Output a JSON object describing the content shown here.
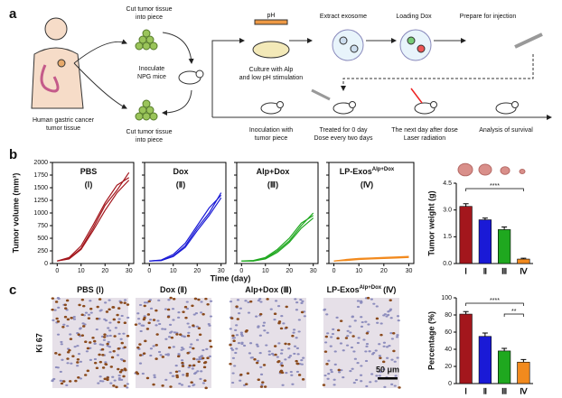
{
  "panel_a": {
    "label": "a",
    "source": [
      "Human gastric cancer",
      "tumor tissue"
    ],
    "cut_top": [
      "Cut tumor tissue",
      "into piece"
    ],
    "inoculate": [
      "Inoculate",
      "NPG mice"
    ],
    "cut_bottom": [
      "Cut tumor tissue",
      "into piece"
    ],
    "ph": "pH",
    "culture": [
      "Culture with Alp",
      "and low pH stimulation"
    ],
    "extract": [
      "Extract exosome"
    ],
    "loading": [
      "Loading Dox"
    ],
    "prepare": [
      "Prepare for injection"
    ],
    "timeline": [
      [
        "Inoculation with",
        "tumor piece"
      ],
      [
        "Treated for 0 day",
        "Dose every two days"
      ],
      [
        "The next day after dose",
        "Laser radiation"
      ],
      [
        "Analysis of survival"
      ]
    ]
  },
  "panel_b": {
    "label": "b",
    "growth": {
      "y_label": "Tumor volume (mm³)",
      "x_label": "Time (day)",
      "x": [
        0,
        5,
        10,
        15,
        20,
        25,
        30
      ],
      "xlim": [
        -2,
        32
      ],
      "xticks": [
        0,
        10,
        20,
        30
      ],
      "ylim": [
        0,
        2000
      ],
      "yticks": [
        0,
        250,
        500,
        750,
        1000,
        1250,
        1500,
        1750,
        2000
      ],
      "groups": [
        {
          "title": "PBS",
          "sup": null,
          "roman": "(Ⅰ)",
          "color": "#a3161c",
          "curves": [
            [
              50,
              100,
              300,
              700,
              1150,
              1450,
              1800
            ],
            [
              50,
              120,
              350,
              760,
              1200,
              1550,
              1700
            ],
            [
              50,
              90,
              280,
              650,
              1050,
              1400,
              1650
            ]
          ]
        },
        {
          "title": "Dox",
          "sup": null,
          "roman": "(Ⅱ)",
          "color": "#1a1ad6",
          "curves": [
            [
              50,
              60,
              150,
              350,
              700,
              1000,
              1400
            ],
            [
              50,
              70,
              180,
              400,
              750,
              1100,
              1350
            ],
            [
              50,
              60,
              140,
              320,
              650,
              950,
              1300
            ]
          ]
        },
        {
          "title": "Alp+Dox",
          "sup": null,
          "roman": "(Ⅲ)",
          "color": "#1fa81f",
          "curves": [
            [
              50,
              50,
              100,
              250,
              450,
              750,
              1000
            ],
            [
              50,
              60,
              120,
              280,
              500,
              800,
              950
            ],
            [
              50,
              50,
              90,
              220,
              420,
              700,
              900
            ]
          ]
        },
        {
          "title": "LP-Exos",
          "sup": "Alp+Dox",
          "roman": "(Ⅳ)",
          "color": "#f28a1e",
          "curves": [
            [
              50,
              80,
              100,
              110,
              120,
              130,
              140
            ],
            [
              50,
              60,
              80,
              90,
              100,
              110,
              120
            ],
            [
              50,
              70,
              90,
              100,
              110,
              120,
              130
            ]
          ]
        }
      ]
    },
    "weight": {
      "y_label": "Tumor weight (g)",
      "categories": [
        "Ⅰ",
        "Ⅱ",
        "Ⅲ",
        "Ⅳ"
      ],
      "values": [
        3.2,
        2.45,
        1.9,
        0.25
      ],
      "errors": [
        0.15,
        0.1,
        0.15,
        0.05
      ],
      "colors": [
        "#a3161c",
        "#1a1ad6",
        "#1fa81f",
        "#f28a1e"
      ],
      "ylim": [
        0,
        4.5
      ],
      "yticks": [
        {
          "value": 0,
          "label": "0.0"
        },
        1.5,
        {
          "value": 3,
          "label": "3.0"
        },
        4.5
      ],
      "significance": [
        "****"
      ]
    }
  },
  "panel_c": {
    "label": "c",
    "stain": "Ki 67",
    "scale_bar": "50 μm",
    "images": [
      {
        "title": "PBS (Ⅰ)",
        "sup": null,
        "suffix": null
      },
      {
        "title": "Dox (Ⅱ)",
        "sup": null,
        "suffix": null
      },
      {
        "title": "Alp+Dox (Ⅲ)",
        "sup": null,
        "suffix": null
      },
      {
        "title": "LP-Exos",
        "sup": "Alp+Dox",
        "suffix": "(Ⅳ)"
      }
    ],
    "percentage": {
      "y_label": "Percentage (%)",
      "categories": [
        "Ⅰ",
        "Ⅱ",
        "Ⅲ",
        "Ⅳ"
      ],
      "values": [
        81,
        55,
        38,
        25
      ],
      "errors": [
        3,
        4,
        3,
        3
      ],
      "colors": [
        "#a3161c",
        "#1a1ad6",
        "#1fa81f",
        "#f28a1e"
      ],
      "ylim": [
        0,
        100
      ],
      "yticks": [
        0,
        20,
        40,
        60,
        80,
        100
      ],
      "significance": [
        "****",
        "**"
      ]
    }
  }
}
